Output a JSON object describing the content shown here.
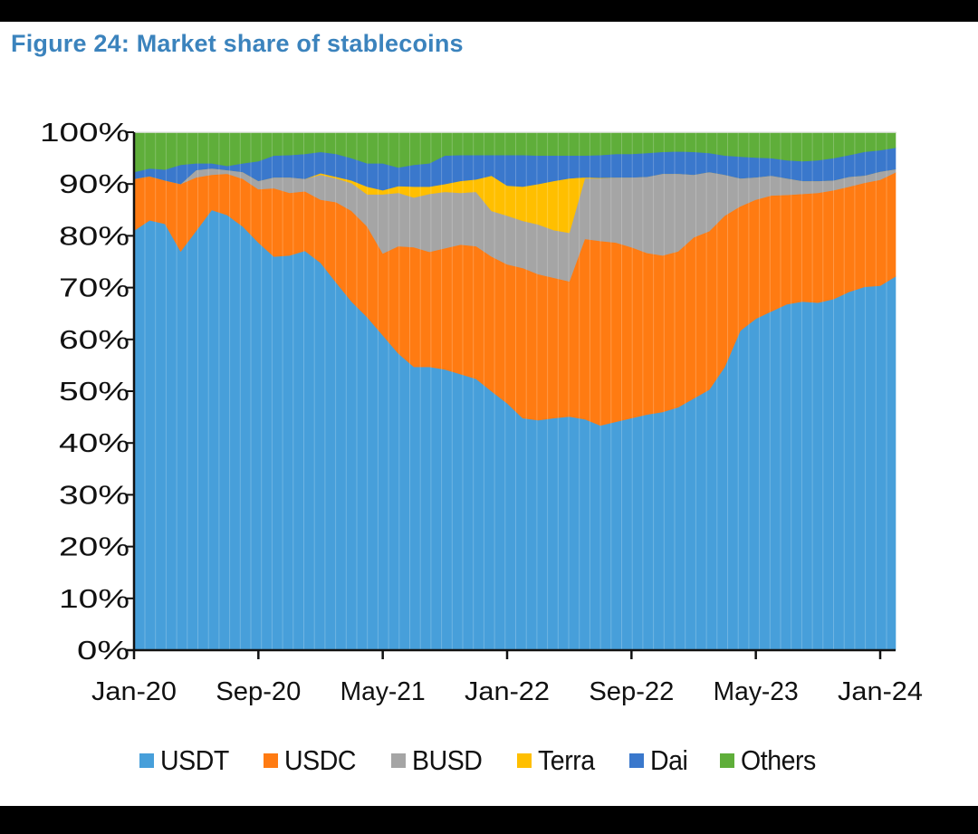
{
  "figure": {
    "title": "Figure 24: Market share of stablecoins"
  },
  "chart_data": {
    "type": "area",
    "stacked": true,
    "normalized": true,
    "title": "Figure 24: Market share of stablecoins",
    "xlabel": "",
    "ylabel": "",
    "ylim": [
      0,
      100
    ],
    "y_ticks": [
      "0%",
      "10%",
      "20%",
      "30%",
      "40%",
      "50%",
      "60%",
      "70%",
      "80%",
      "90%",
      "100%"
    ],
    "x_ticks": [
      "Jan-20",
      "Sep-20",
      "May-21",
      "Jan-22",
      "Sep-22",
      "May-23",
      "Jan-24"
    ],
    "x_tick_month_index": [
      0,
      8,
      16,
      24,
      32,
      40,
      48
    ],
    "x_start": "Jan-20",
    "x_end": "Feb-24",
    "frequency": "monthly",
    "legend_position": "bottom",
    "grid": false,
    "series": [
      {
        "name": "USDT",
        "color": "#479fda",
        "values": [
          81.0,
          83.0,
          82.3,
          77.0,
          81.0,
          85.0,
          84.0,
          81.8,
          78.7,
          76.0,
          76.2,
          77.1,
          74.8,
          71.0,
          67.3,
          64.3,
          60.8,
          57.3,
          54.7,
          54.7,
          54.2,
          53.3,
          52.4,
          50.0,
          47.7,
          44.8,
          44.4,
          44.8,
          45.1,
          44.6,
          43.4,
          44.1,
          44.8,
          45.5,
          46.0,
          46.9,
          48.6,
          50.3,
          54.7,
          61.7,
          64.0,
          65.4,
          66.8,
          67.3,
          67.1,
          67.8,
          69.2,
          70.5,
          71.3,
          72.6
        ]
      },
      {
        "name": "USDC",
        "color": "#ff7b12",
        "values": [
          10.0,
          8.5,
          8.4,
          13.0,
          10.3,
          6.8,
          8.0,
          9.2,
          10.3,
          13.2,
          12.1,
          11.5,
          12.2,
          15.5,
          17.5,
          17.5,
          15.8,
          20.7,
          23.1,
          22.2,
          23.4,
          25.0,
          25.6,
          26.0,
          26.8,
          29.0,
          28.2,
          27.1,
          26.1,
          34.8,
          35.6,
          34.6,
          33.0,
          31.2,
          30.2,
          30.1,
          31.1,
          30.6,
          29.2,
          24.0,
          23.0,
          22.4,
          21.1,
          20.8,
          21.2,
          21.0,
          20.3,
          20.2,
          20.7,
          20.2
        ]
      },
      {
        "name": "BUSD",
        "color": "#a5a5a5",
        "values": [
          0.0,
          0.0,
          0.0,
          0.0,
          1.4,
          1.2,
          0.7,
          1.3,
          1.6,
          2.1,
          3.0,
          2.4,
          4.8,
          4.6,
          5.4,
          6.2,
          11.4,
          10.3,
          9.6,
          11.2,
          10.9,
          10.0,
          10.5,
          8.8,
          9.4,
          9.1,
          9.6,
          9.2,
          9.4,
          11.7,
          12.1,
          12.6,
          13.5,
          14.7,
          15.8,
          15.0,
          12.1,
          11.4,
          7.9,
          5.4,
          4.3,
          3.8,
          3.2,
          2.5,
          2.3,
          1.9,
          1.9,
          1.4,
          1.6,
          0.6
        ]
      },
      {
        "name": "Terra",
        "color": "#ffbf00",
        "values": [
          0.0,
          0.0,
          0.0,
          0.0,
          0.0,
          0.0,
          0.0,
          0.0,
          0.0,
          0.0,
          0.0,
          0.0,
          0.3,
          0.3,
          0.5,
          1.5,
          0.8,
          1.3,
          2.1,
          1.4,
          1.5,
          2.3,
          2.4,
          6.8,
          5.8,
          6.6,
          7.8,
          9.5,
          10.5,
          0.2,
          0.1,
          0.0,
          0.0,
          0.0,
          0.0,
          0.0,
          0.0,
          0.0,
          0.0,
          0.0,
          0.0,
          0.0,
          0.0,
          0.0,
          0.0,
          0.0,
          0.0,
          0.0,
          0.0,
          0.0
        ]
      },
      {
        "name": "Dai",
        "color": "#3a78cc",
        "values": [
          1.3,
          1.5,
          2.1,
          3.7,
          1.3,
          1.0,
          0.8,
          1.7,
          3.8,
          4.2,
          4.3,
          4.8,
          4.1,
          4.4,
          4.3,
          4.5,
          5.2,
          3.6,
          4.2,
          4.5,
          5.5,
          5.0,
          4.7,
          4.0,
          5.9,
          6.1,
          5.5,
          4.9,
          4.4,
          4.2,
          4.4,
          4.5,
          4.5,
          4.6,
          4.2,
          4.3,
          4.4,
          3.7,
          3.7,
          4.2,
          3.8,
          3.4,
          3.5,
          3.8,
          4.0,
          4.3,
          4.2,
          4.6,
          4.2,
          4.2
        ]
      },
      {
        "name": "Others",
        "color": "#5fae3a",
        "values": [
          7.7,
          7.0,
          7.2,
          6.3,
          6.0,
          6.0,
          6.5,
          6.0,
          5.6,
          4.5,
          4.4,
          4.2,
          3.8,
          4.2,
          5.0,
          6.0,
          6.0,
          6.8,
          6.3,
          6.0,
          4.5,
          4.4,
          4.4,
          4.4,
          4.4,
          4.4,
          4.5,
          4.5,
          4.5,
          4.5,
          4.4,
          4.2,
          4.2,
          4.0,
          3.8,
          3.7,
          3.8,
          4.0,
          4.5,
          4.7,
          4.9,
          5.0,
          5.4,
          5.6,
          5.4,
          5.0,
          4.4,
          3.8,
          3.5,
          3.0
        ]
      }
    ]
  }
}
